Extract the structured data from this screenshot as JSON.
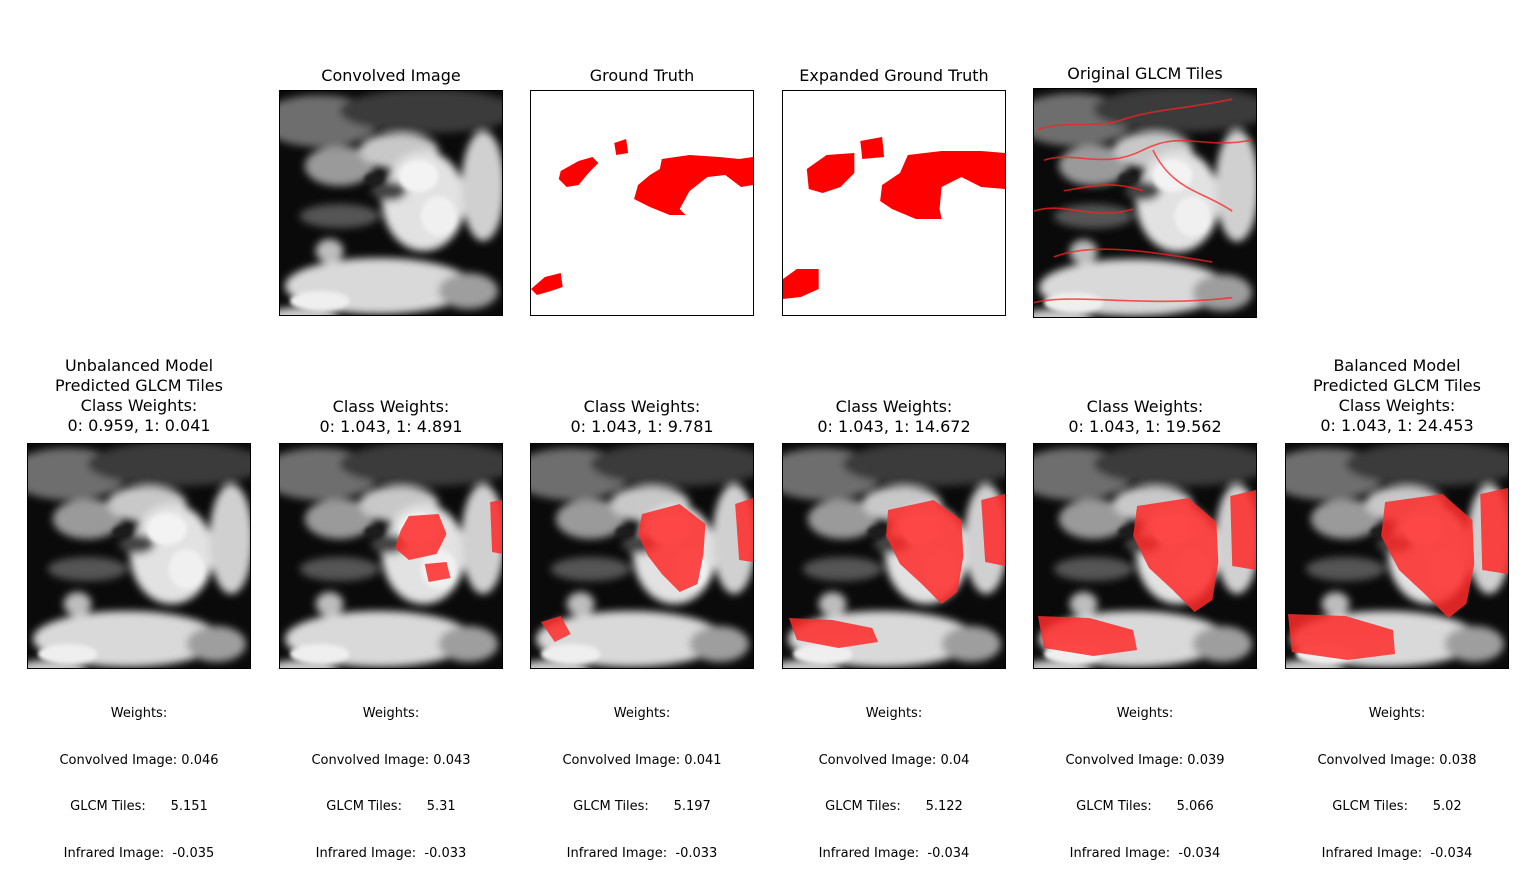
{
  "top_row": [
    {
      "title": "Convolved Image",
      "kind": "gray"
    },
    {
      "title": "Ground Truth",
      "kind": "gt"
    },
    {
      "title": "Expanded Ground Truth",
      "kind": "gt-expanded"
    },
    {
      "title": "Original GLCM Tiles",
      "kind": "glcm"
    }
  ],
  "bottom_row": [
    {
      "title": "Unbalanced Model\nPredicted GLCM Tiles\nClass Weights:\n0: 0.959, 1: 0.041",
      "overlay_level": 0,
      "weights": {
        "header": "Weights:",
        "convolved": "Convolved Image: 0.046",
        "glcm": "GLCM Tiles:      5.151",
        "infrared": "Infrared Image:  -0.035"
      }
    },
    {
      "title": "Class Weights:\n0: 1.043, 1: 4.891",
      "overlay_level": 1,
      "weights": {
        "header": "Weights:",
        "convolved": "Convolved Image: 0.043",
        "glcm": "GLCM Tiles:      5.31",
        "infrared": "Infrared Image:  -0.033"
      }
    },
    {
      "title": "Class Weights:\n0: 1.043, 1: 9.781",
      "overlay_level": 2,
      "weights": {
        "header": "Weights:",
        "convolved": "Convolved Image: 0.041",
        "glcm": "GLCM Tiles:      5.197",
        "infrared": "Infrared Image:  -0.033"
      }
    },
    {
      "title": "Class Weights:\n0: 1.043, 1: 14.672",
      "overlay_level": 3,
      "weights": {
        "header": "Weights:",
        "convolved": "Convolved Image: 0.04",
        "glcm": "GLCM Tiles:      5.122",
        "infrared": "Infrared Image:  -0.034"
      }
    },
    {
      "title": "Class Weights:\n0: 1.043, 1: 19.562",
      "overlay_level": 4,
      "weights": {
        "header": "Weights:",
        "convolved": "Convolved Image: 0.039",
        "glcm": "GLCM Tiles:      5.066",
        "infrared": "Infrared Image:  -0.034"
      }
    },
    {
      "title": "Balanced Model\nPredicted GLCM Tiles\nClass Weights:\n0: 1.043, 1: 24.453",
      "overlay_level": 5,
      "weights": {
        "header": "Weights:",
        "convolved": "Convolved Image: 0.038",
        "glcm": "GLCM Tiles:      5.02",
        "infrared": "Infrared Image:  -0.034"
      }
    }
  ],
  "colors": {
    "mask": "#ff0000",
    "overlay": "#ff2a2a",
    "background": "#ffffff"
  }
}
